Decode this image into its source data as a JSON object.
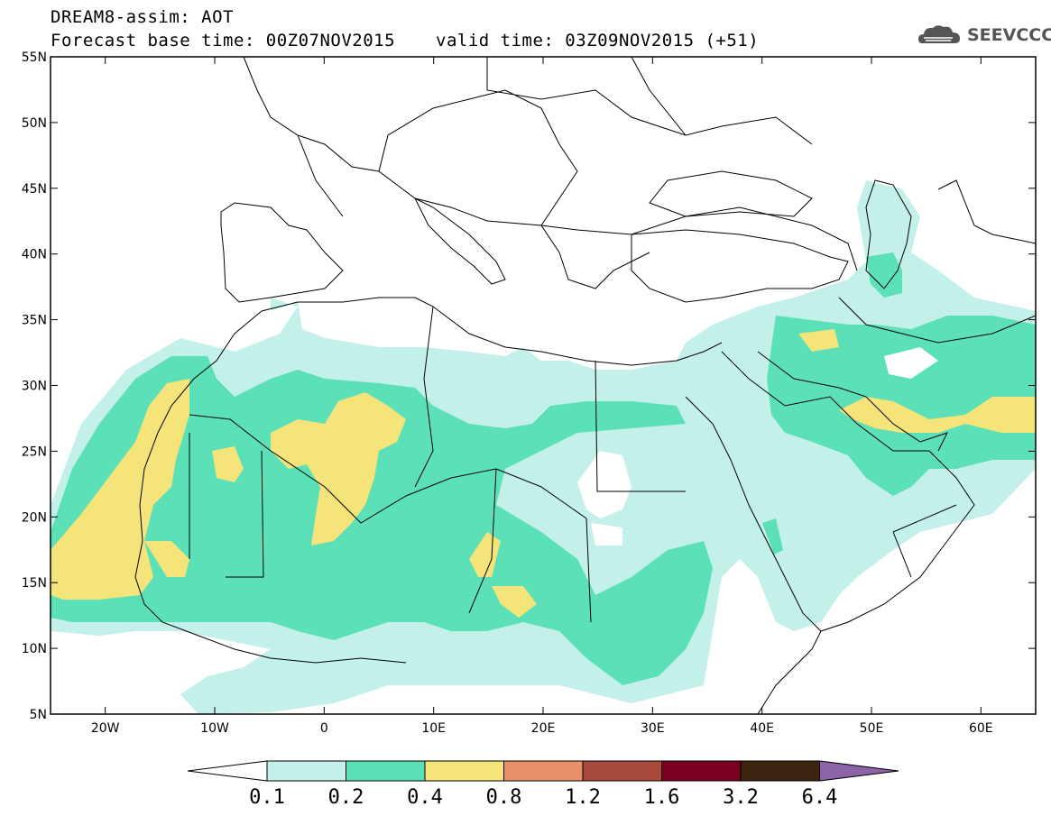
{
  "title": {
    "line1": "DREAM8-assim: AOT",
    "line2": "Forecast base time: 00Z07NOV2015",
    "valid": "valid time: 03Z09NOV2015 (+51)"
  },
  "logo": {
    "text": "SEEVCCC",
    "icon": "cloud-icon"
  },
  "axes": {
    "lat_labels": [
      "55N",
      "50N",
      "45N",
      "40N",
      "35N",
      "30N",
      "25N",
      "20N",
      "15N",
      "10N",
      "5N"
    ],
    "lon_labels": [
      "20W",
      "10W",
      "0",
      "10E",
      "20E",
      "30E",
      "40E",
      "50E",
      "60E"
    ]
  },
  "colorbar": {
    "labels": [
      "0.1",
      "0.2",
      "0.4",
      "0.8",
      "1.2",
      "1.6",
      "3.2",
      "6.4"
    ],
    "colors": [
      "#c4f0ea",
      "#5ce0b8",
      "#f4e47a",
      "#e8906a",
      "#a84a3c",
      "#7a0020",
      "#3a2410",
      "#8c64a8"
    ]
  },
  "colors": {
    "light": "#c4f0ea",
    "medium": "#5ce0b8",
    "high": "#f4e47a",
    "coast": "#000000"
  }
}
